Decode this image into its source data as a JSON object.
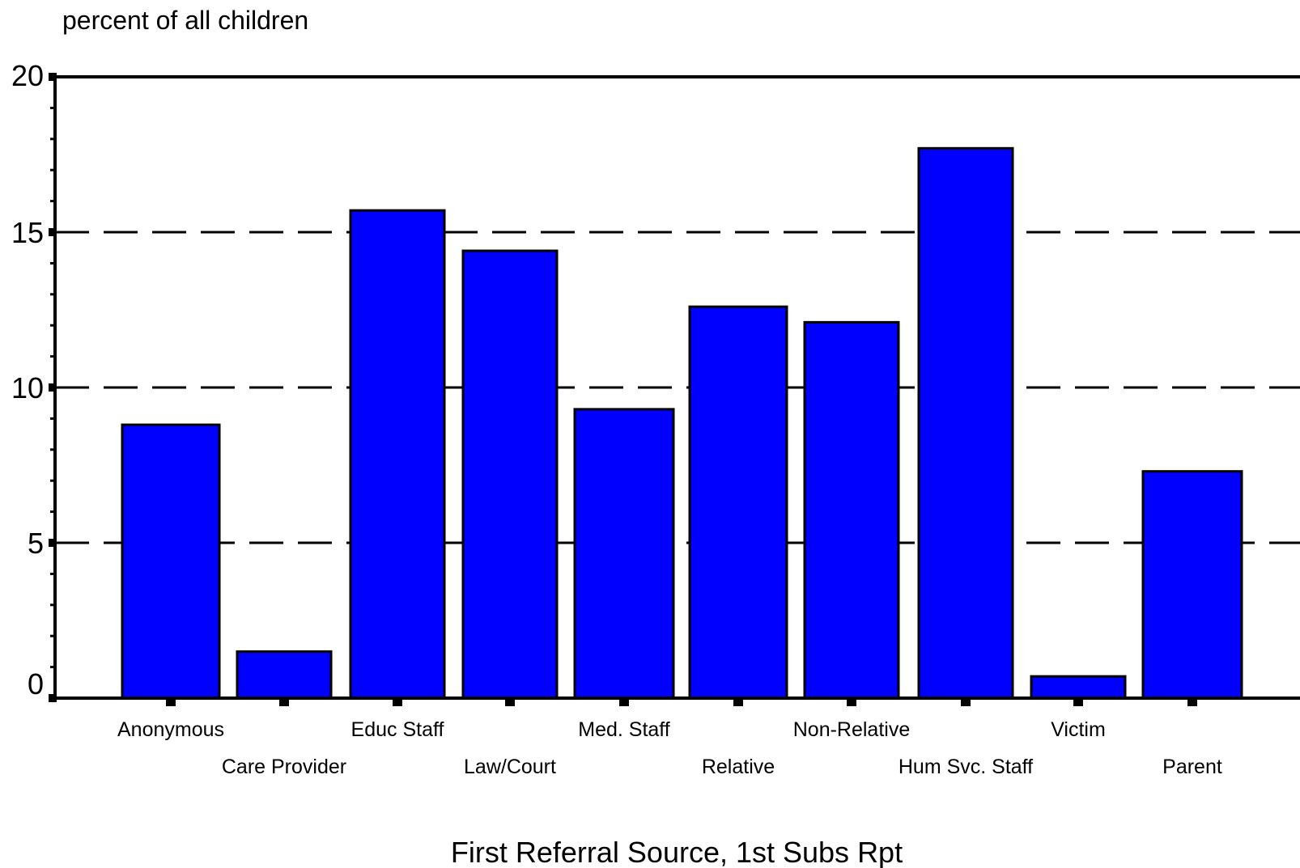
{
  "chart_data": {
    "type": "bar",
    "title": "",
    "ylabel": "percent of all children",
    "xlabel": "First Referral Source, 1st Subs Rpt",
    "categories": [
      "Anonymous",
      "Care Provider",
      "Educ Staff",
      "Law/Court",
      "Med. Staff",
      "Relative",
      "Non-Relative",
      "Hum Svc. Staff",
      "Victim",
      "Parent"
    ],
    "values": [
      8.8,
      1.5,
      15.7,
      14.4,
      9.3,
      12.6,
      12.1,
      17.7,
      0.7,
      7.3
    ],
    "ylim": [
      0,
      20
    ],
    "yticks": [
      0,
      5,
      10,
      15,
      20
    ],
    "ytick_labels": [
      "0",
      "5",
      "10",
      "15",
      "20"
    ],
    "grid": "horizontal dashed at 5, 10, 15",
    "bar_color": "#0000ff",
    "bar_edge_color": "#000000",
    "legend": "none"
  }
}
